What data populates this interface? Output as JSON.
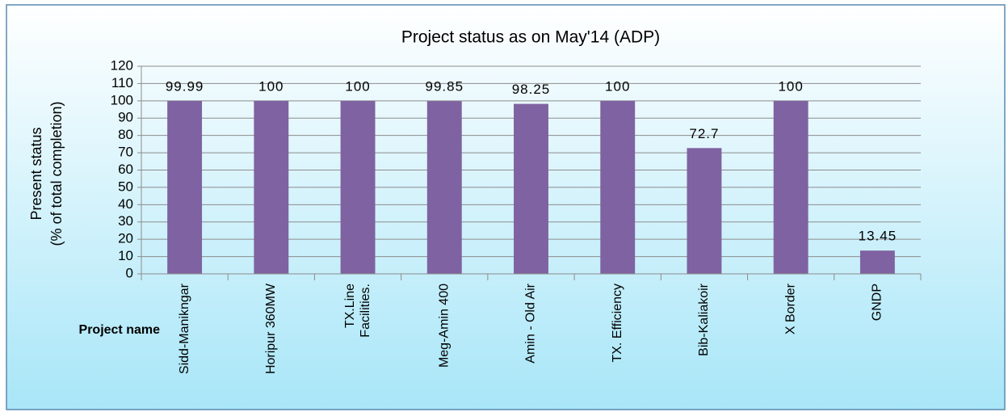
{
  "chart_data": {
    "type": "bar",
    "title": "Project  status as on  May'14 (ADP)",
    "y_label": [
      "Present status",
      "(% of total completion)"
    ],
    "x_label": "Project name",
    "categories": [
      "Sidd-Manikngar",
      "Horipur 360MW",
      [
        "TX.Line",
        "Facilities."
      ],
      "Meg-Amin 400",
      "Amin - Old Air",
      "TX. Efficiency",
      "Bib-Kaliakoir",
      "X Border",
      "GNDP"
    ],
    "values": [
      99.99,
      100,
      100,
      99.85,
      98.25,
      100,
      72.7,
      100,
      13.45
    ],
    "color": "#7f62a1",
    "ylim": [
      0,
      120
    ],
    "yticks": [
      0,
      10,
      20,
      30,
      40,
      50,
      60,
      70,
      80,
      90,
      100,
      110,
      120
    ],
    "grid": true
  }
}
